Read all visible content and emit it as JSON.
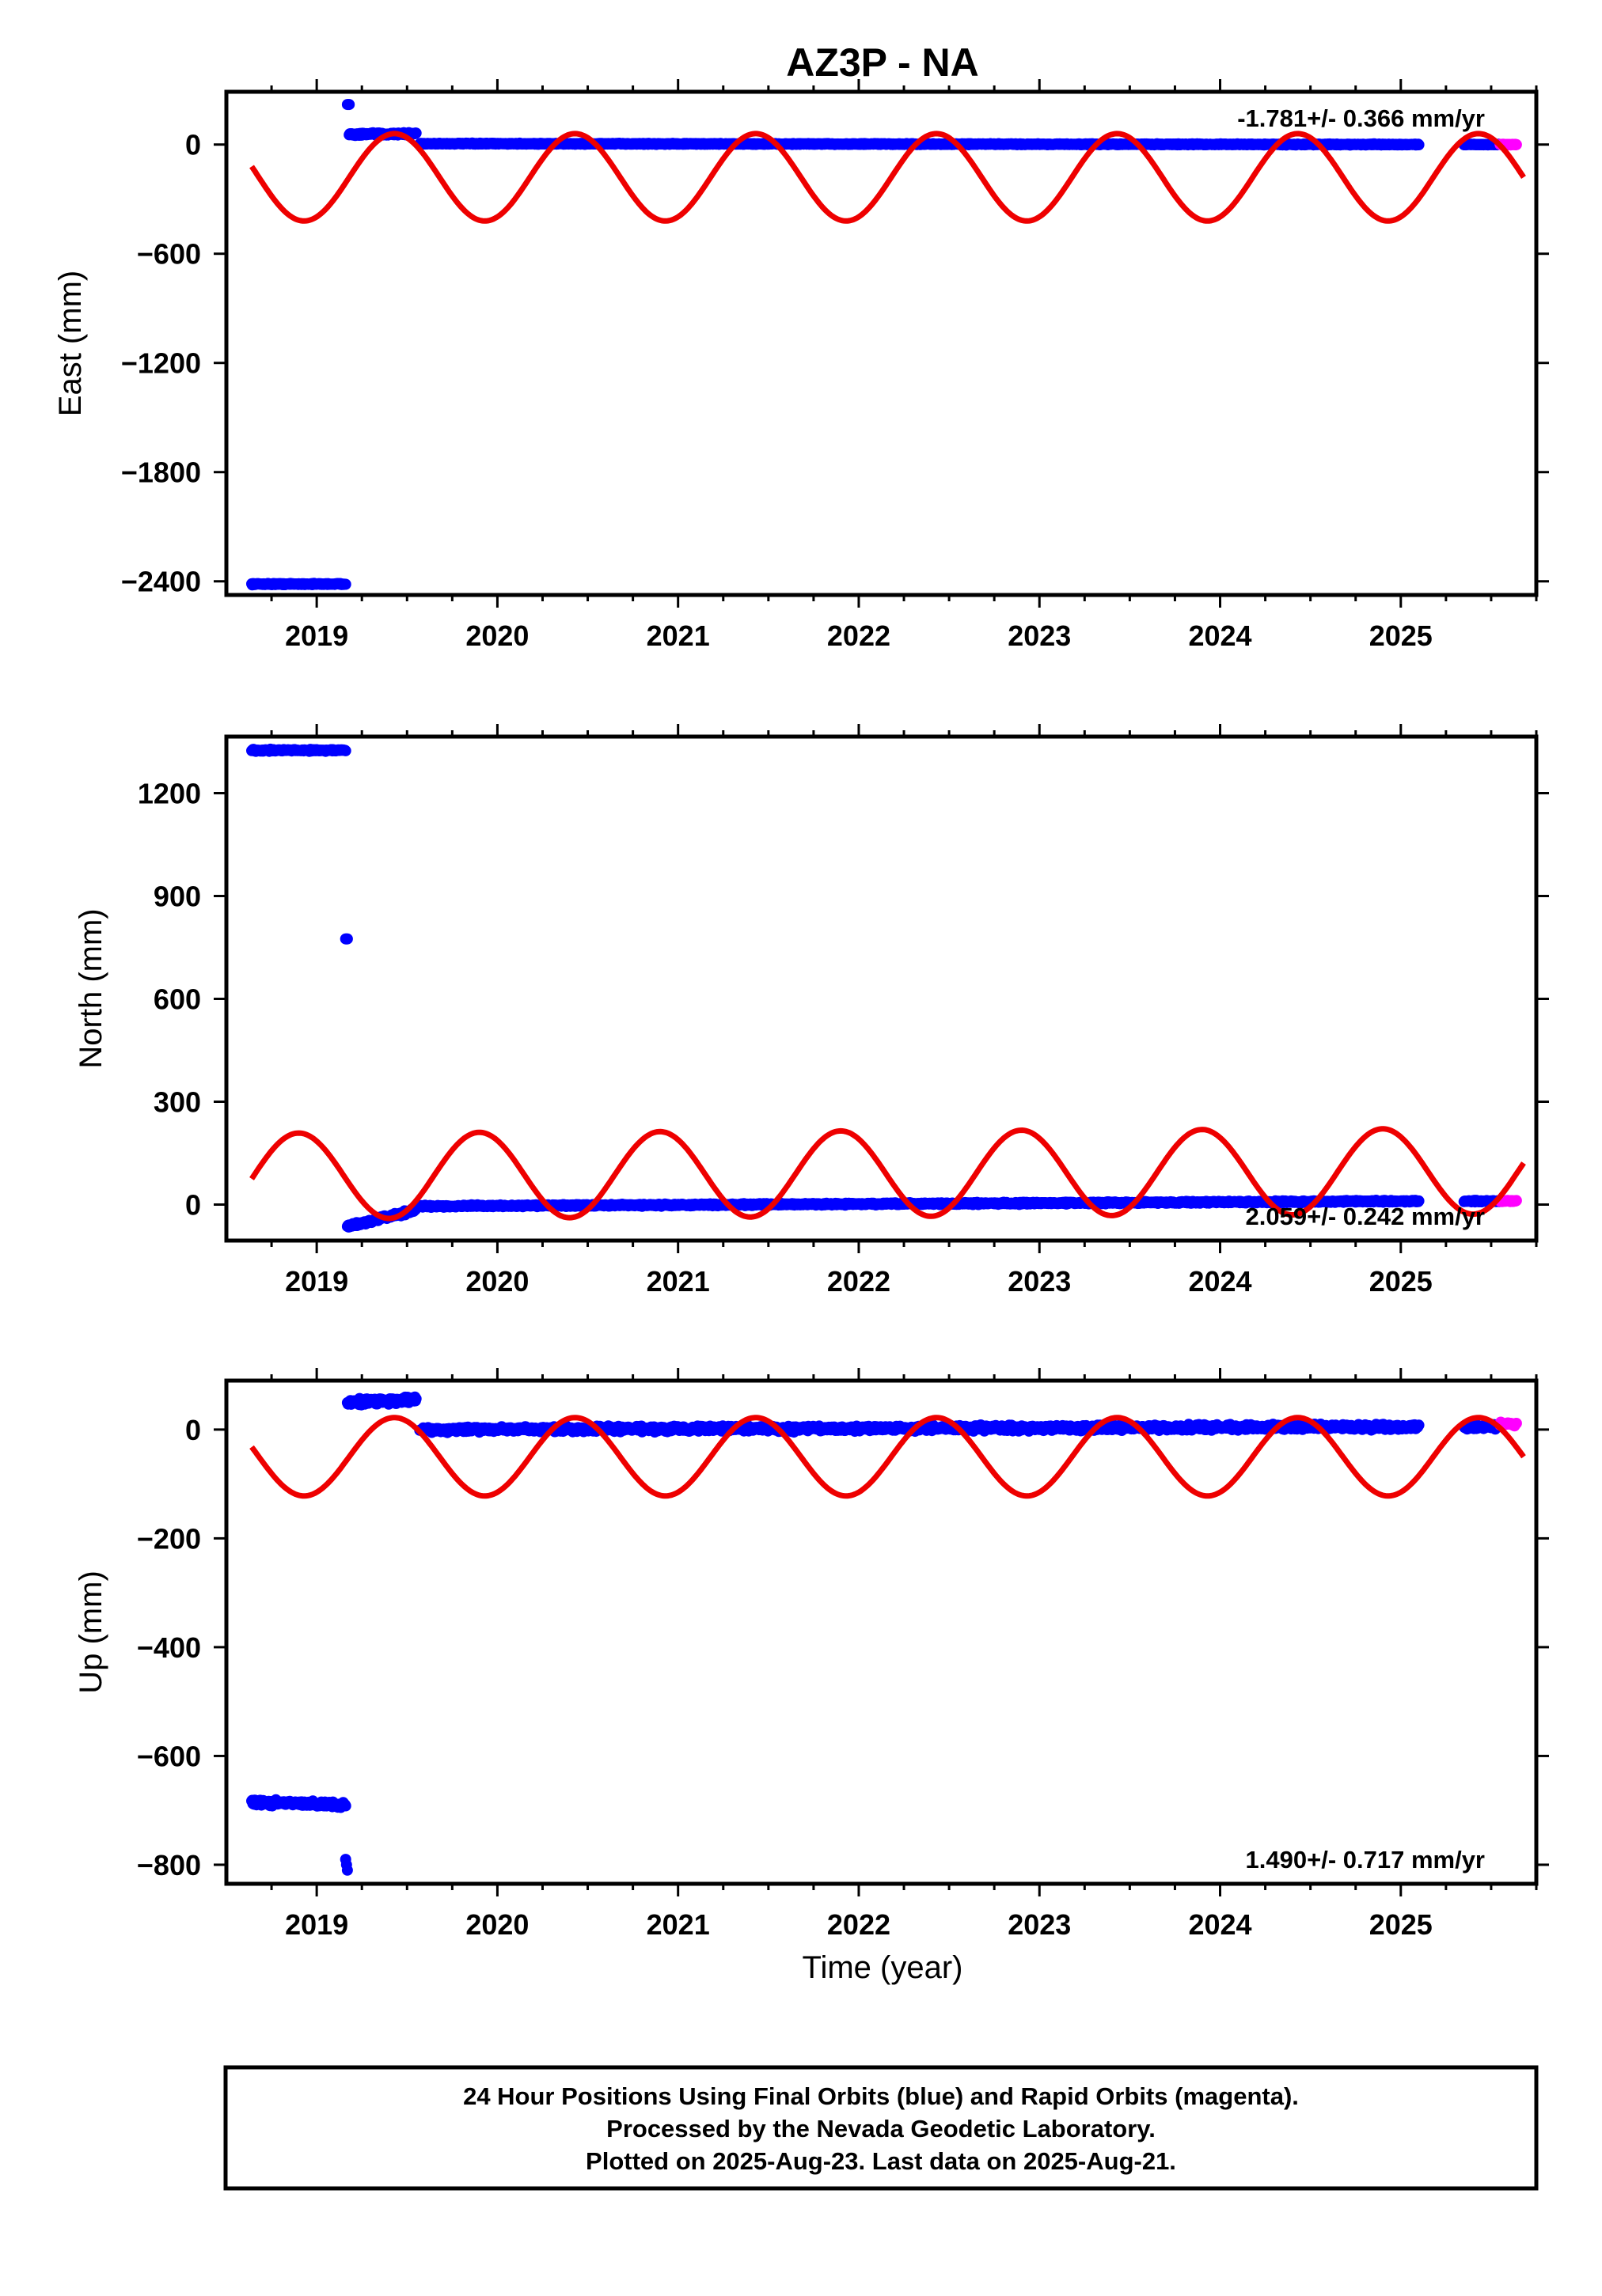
{
  "title": "AZ3P - NA",
  "xlabel": "Time (year)",
  "caption": [
    "24 Hour Positions Using Final Orbits (blue) and Rapid Orbits (magenta).",
    "Processed by the Nevada Geodetic Laboratory.",
    "Plotted on 2025-Aug-23. Last data on 2025-Aug-21."
  ],
  "colors": {
    "final": "#0000ff",
    "rapid": "#ff00ff",
    "model": "#ee0000",
    "frame": "#000000"
  },
  "chart_data": [
    {
      "type": "scatter",
      "ylabel": "East (mm)",
      "rate_text": "-1.781+/- 0.366 mm/yr",
      "rate_pos": "top-right",
      "xlim": [
        2018.5,
        2025.75
      ],
      "ylim": [
        -2475,
        290
      ],
      "yticks": [
        0,
        -600,
        -1200,
        -1800,
        -2400
      ],
      "ytick_labels": [
        "0",
        "−600",
        "−1200",
        "−1800",
        "−2400"
      ],
      "xticks": [
        2019,
        2020,
        2021,
        2022,
        2023,
        2024,
        2025
      ],
      "grid": false,
      "segments": [
        {
          "series": "final",
          "x_start": 2018.64,
          "x_end": 2019.16,
          "y_start": -2415,
          "y_end": -2415,
          "noise": 5
        },
        {
          "series": "final",
          "x_start": 2019.17,
          "x_end": 2019.18,
          "y_start": 220,
          "y_end": 220,
          "noise": 0
        },
        {
          "series": "final",
          "x_start": 2019.18,
          "x_end": 2019.55,
          "y_start": 55,
          "y_end": 60,
          "noise": 10
        },
        {
          "series": "final",
          "x_start": 2019.57,
          "x_end": 2025.1,
          "y_start": 5,
          "y_end": 0,
          "noise": 4
        },
        {
          "series": "final",
          "x_start": 2025.35,
          "x_end": 2025.55,
          "y_start": 0,
          "y_end": 0,
          "noise": 3
        },
        {
          "series": "rapid",
          "x_start": 2025.55,
          "x_end": 2025.64,
          "y_start": 0,
          "y_end": 0,
          "noise": 3
        }
      ],
      "model": {
        "offset": -180,
        "amplitude": 240,
        "peak_year_fraction": 0.43,
        "x_start": 2018.64,
        "x_end": 2025.68
      }
    },
    {
      "type": "scatter",
      "ylabel": "North (mm)",
      "rate_text": "2.059+/- 0.242 mm/yr",
      "rate_pos": "bottom-right",
      "xlim": [
        2018.5,
        2025.75
      ],
      "ylim": [
        -105,
        1365
      ],
      "yticks": [
        1200,
        900,
        600,
        300,
        0
      ],
      "ytick_labels": [
        "1200",
        "900",
        "600",
        "300",
        "0"
      ],
      "xticks": [
        2019,
        2020,
        2021,
        2022,
        2023,
        2024,
        2025
      ],
      "grid": false,
      "segments": [
        {
          "series": "final",
          "x_start": 2018.64,
          "x_end": 2019.16,
          "y_start": 1325,
          "y_end": 1325,
          "noise": 4
        },
        {
          "series": "final",
          "x_start": 2019.16,
          "x_end": 2019.17,
          "y_start": 775,
          "y_end": 775,
          "noise": 0
        },
        {
          "series": "final",
          "x_start": 2019.17,
          "x_end": 2019.55,
          "y_start": -65,
          "y_end": -15,
          "noise": 8
        },
        {
          "series": "final",
          "x_start": 2019.57,
          "x_end": 2025.1,
          "y_start": -5,
          "y_end": 10,
          "noise": 4
        },
        {
          "series": "final",
          "x_start": 2025.35,
          "x_end": 2025.55,
          "y_start": 10,
          "y_end": 10,
          "noise": 3
        },
        {
          "series": "rapid",
          "x_start": 2025.55,
          "x_end": 2025.64,
          "y_start": 10,
          "y_end": 10,
          "noise": 3
        }
      ],
      "model": {
        "offset": 90,
        "amplitude": 125,
        "peak_year_fraction": 0.9,
        "x_start": 2018.64,
        "x_end": 2025.68,
        "trend_per_year": 2.06
      }
    },
    {
      "type": "scatter",
      "ylabel": "Up (mm)",
      "rate_text": "1.490+/- 0.717 mm/yr",
      "rate_pos": "bottom-right",
      "xlim": [
        2018.5,
        2025.75
      ],
      "ylim": [
        -835,
        90
      ],
      "yticks": [
        0,
        -200,
        -400,
        -600,
        -800
      ],
      "ytick_labels": [
        "0",
        "−200",
        "−400",
        "−600",
        "−800"
      ],
      "xticks": [
        2019,
        2020,
        2021,
        2022,
        2023,
        2024,
        2025
      ],
      "grid": false,
      "segments": [
        {
          "series": "final",
          "x_start": 2018.64,
          "x_end": 2019.16,
          "y_start": -685,
          "y_end": -690,
          "noise": 7
        },
        {
          "series": "final",
          "x_start": 2019.16,
          "x_end": 2019.17,
          "y_start": -790,
          "y_end": -810,
          "noise": 0
        },
        {
          "series": "final",
          "x_start": 2019.17,
          "x_end": 2019.55,
          "y_start": 50,
          "y_end": 55,
          "noise": 8
        },
        {
          "series": "final",
          "x_start": 2019.57,
          "x_end": 2025.1,
          "y_start": 0,
          "y_end": 5,
          "noise": 7
        },
        {
          "series": "final",
          "x_start": 2025.35,
          "x_end": 2025.55,
          "y_start": 5,
          "y_end": 5,
          "noise": 5
        },
        {
          "series": "rapid",
          "x_start": 2025.55,
          "x_end": 2025.64,
          "y_start": 10,
          "y_end": 10,
          "noise": 6
        }
      ],
      "model": {
        "offset": -50,
        "amplitude": 72,
        "peak_year_fraction": 0.43,
        "x_start": 2018.64,
        "x_end": 2025.68
      }
    }
  ]
}
